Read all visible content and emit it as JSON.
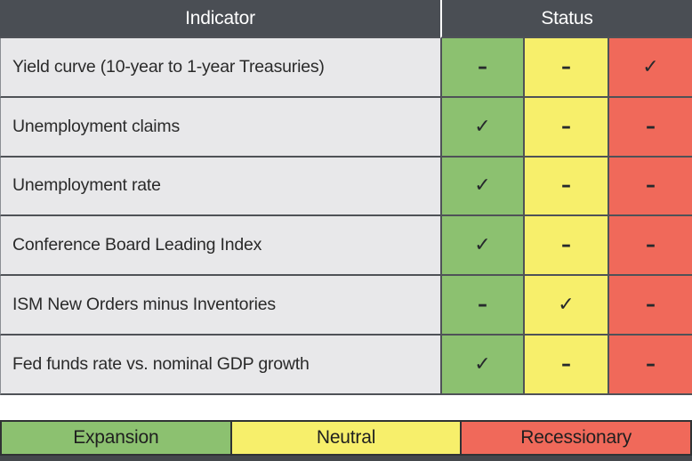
{
  "table": {
    "header": {
      "indicator": "Indicator",
      "status": "Status"
    },
    "rows": [
      {
        "indicator": "Yield curve (10-year to 1-year Treasuries)",
        "cells": [
          "–",
          "–",
          "✓"
        ]
      },
      {
        "indicator": "Unemployment claims",
        "cells": [
          "✓",
          "–",
          "–"
        ]
      },
      {
        "indicator": "Unemployment rate",
        "cells": [
          "✓",
          "–",
          "–"
        ]
      },
      {
        "indicator": "Conference Board Leading Index",
        "cells": [
          "✓",
          "–",
          "–"
        ]
      },
      {
        "indicator": "ISM New Orders minus Inventories",
        "cells": [
          "–",
          "✓",
          "–"
        ]
      },
      {
        "indicator": "Fed funds rate vs. nominal GDP growth",
        "cells": [
          "✓",
          "–",
          "–"
        ]
      }
    ]
  },
  "legend": {
    "expansion": "Expansion",
    "neutral": "Neutral",
    "recessionary": "Recessionary"
  },
  "symbols": {
    "check": "✓",
    "dash": "–"
  },
  "colors": {
    "header_bg": "#4a4e54",
    "header_text": "#ffffff",
    "row_bg": "#e8e8ea",
    "expansion_green": "#8cc170",
    "neutral_yellow": "#f7ef6b",
    "recessionary_red": "#f0695a",
    "cell_border": "#4f5257",
    "legend_border": "#303234",
    "bottom_bar": "#44474c"
  },
  "chart_data": {
    "type": "table",
    "title": "",
    "columns": [
      "Indicator",
      "Expansion",
      "Neutral",
      "Recessionary"
    ],
    "rows": [
      [
        "Yield curve (10-year to 1-year Treasuries)",
        "–",
        "–",
        "✓"
      ],
      [
        "Unemployment claims",
        "✓",
        "–",
        "–"
      ],
      [
        "Unemployment rate",
        "✓",
        "–",
        "–"
      ],
      [
        "Conference Board Leading Index",
        "✓",
        "–",
        "–"
      ],
      [
        "ISM New Orders minus Inventories",
        "–",
        "✓",
        "–"
      ],
      [
        "Fed funds rate vs. nominal GDP growth",
        "✓",
        "–",
        "–"
      ]
    ],
    "legend_entries": [
      "Expansion",
      "Neutral",
      "Recessionary"
    ],
    "legend_colors": [
      "#8cc170",
      "#f7ef6b",
      "#f0695a"
    ],
    "layout": {
      "status_group_header": "Status",
      "legend_position": "bottom"
    }
  }
}
